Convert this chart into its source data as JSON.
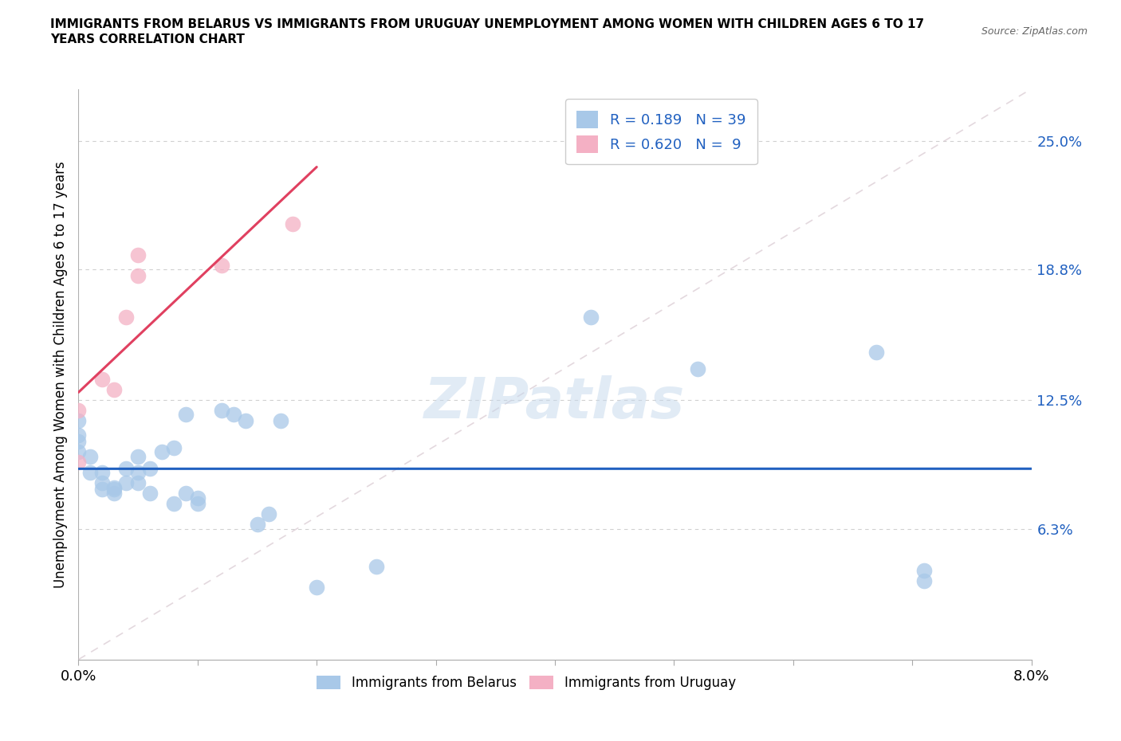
{
  "title_line1": "IMMIGRANTS FROM BELARUS VS IMMIGRANTS FROM URUGUAY UNEMPLOYMENT AMONG WOMEN WITH CHILDREN AGES 6 TO 17",
  "title_line2": "YEARS CORRELATION CHART",
  "source": "Source: ZipAtlas.com",
  "ylabel": "Unemployment Among Women with Children Ages 6 to 17 years",
  "ytick_labels": [
    "6.3%",
    "12.5%",
    "18.8%",
    "25.0%"
  ],
  "ytick_values": [
    0.063,
    0.125,
    0.188,
    0.25
  ],
  "xlim": [
    0.0,
    0.08
  ],
  "ylim": [
    0.0,
    0.275
  ],
  "xtick_positions": [
    0.0,
    0.01,
    0.02,
    0.03,
    0.04,
    0.05,
    0.06,
    0.07,
    0.08
  ],
  "watermark": "ZIPatlas",
  "legend_R1": "R = 0.189",
  "legend_N1": "N = 39",
  "legend_R2": "R = 0.620",
  "legend_N2": "N =  9",
  "color_belarus": "#a8c8e8",
  "color_uruguay": "#f4b0c4",
  "trendline_belarus_color": "#2060c0",
  "trendline_uruguay_color": "#e04060",
  "legend_text_color": "#2060c0",
  "ytick_color": "#2060c0",
  "belarus_x": [
    0.0,
    0.0,
    0.0,
    0.0,
    0.001,
    0.001,
    0.002,
    0.002,
    0.002,
    0.003,
    0.003,
    0.003,
    0.004,
    0.004,
    0.005,
    0.005,
    0.005,
    0.006,
    0.006,
    0.007,
    0.008,
    0.008,
    0.009,
    0.009,
    0.01,
    0.01,
    0.012,
    0.013,
    0.014,
    0.015,
    0.016,
    0.017,
    0.02,
    0.025,
    0.043,
    0.052,
    0.067,
    0.071,
    0.071
  ],
  "belarus_y": [
    0.1,
    0.105,
    0.108,
    0.115,
    0.09,
    0.098,
    0.082,
    0.085,
    0.09,
    0.08,
    0.082,
    0.083,
    0.085,
    0.092,
    0.085,
    0.09,
    0.098,
    0.08,
    0.092,
    0.1,
    0.075,
    0.102,
    0.08,
    0.118,
    0.075,
    0.078,
    0.12,
    0.118,
    0.115,
    0.065,
    0.07,
    0.115,
    0.035,
    0.045,
    0.165,
    0.14,
    0.148,
    0.038,
    0.043
  ],
  "uruguay_x": [
    0.0,
    0.0,
    0.002,
    0.003,
    0.004,
    0.005,
    0.005,
    0.012,
    0.018
  ],
  "uruguay_y": [
    0.12,
    0.095,
    0.135,
    0.13,
    0.165,
    0.185,
    0.195,
    0.19,
    0.21
  ]
}
